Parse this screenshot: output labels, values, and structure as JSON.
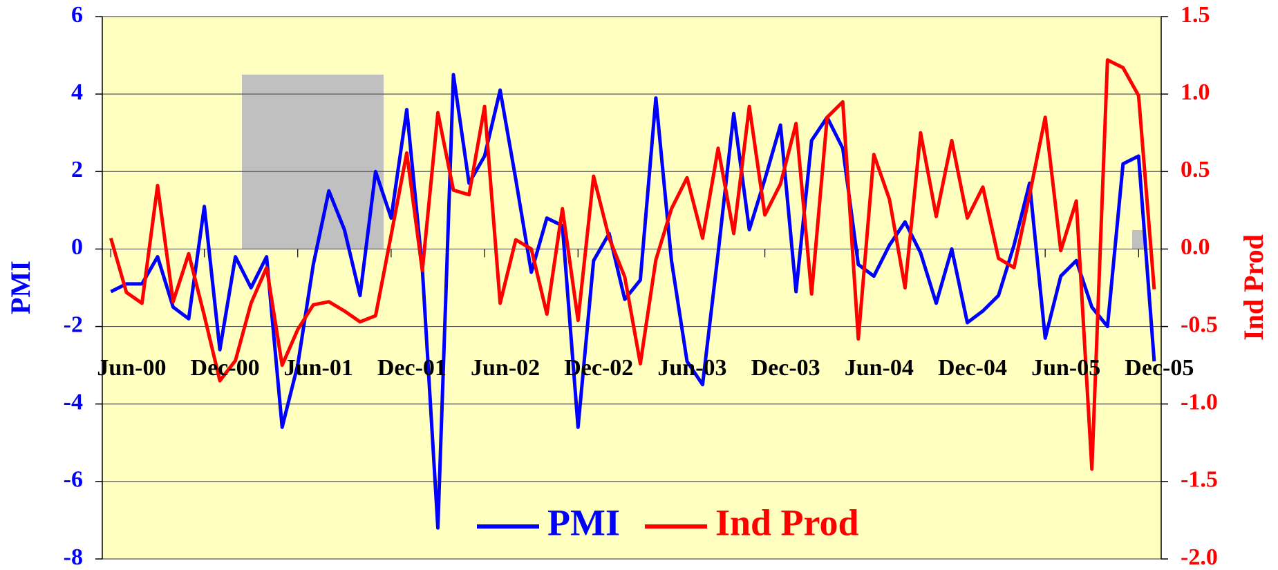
{
  "chart_data": {
    "type": "line",
    "categories": [
      "Jun-00",
      null,
      null,
      null,
      null,
      null,
      "Dec-00",
      null,
      null,
      null,
      null,
      null,
      "Jun-01",
      null,
      null,
      null,
      null,
      null,
      "Dec-01",
      null,
      null,
      null,
      null,
      null,
      "Jun-02",
      null,
      null,
      null,
      null,
      null,
      "Dec-02",
      null,
      null,
      null,
      null,
      null,
      "Jun-03",
      null,
      null,
      null,
      null,
      null,
      "Dec-03",
      null,
      null,
      null,
      null,
      null,
      "Jun-04",
      null,
      null,
      null,
      null,
      null,
      "Dec-04",
      null,
      null,
      null,
      null,
      null,
      "Jun-05",
      null,
      null,
      null,
      null,
      null,
      "Dec-05",
      null
    ],
    "series": [
      {
        "name": "PMI",
        "color": "#0000ff",
        "axis": "y",
        "values": [
          -1.1,
          -0.9,
          -0.9,
          -0.2,
          -1.5,
          -1.8,
          1.1,
          -2.6,
          -0.2,
          -1.0,
          -0.2,
          -4.6,
          -3.0,
          -0.4,
          1.5,
          0.5,
          -1.2,
          2.0,
          0.8,
          3.6,
          -0.5,
          -7.2,
          4.5,
          1.7,
          2.4,
          4.1,
          1.8,
          -0.6,
          0.8,
          0.6,
          -4.6,
          -0.3,
          0.4,
          -1.3,
          -0.8,
          3.9,
          -0.3,
          -2.9,
          -3.5,
          -0.1,
          3.5,
          0.5,
          1.8,
          3.2,
          -1.1,
          2.8,
          3.4,
          2.6,
          -0.4,
          -0.7,
          0.1,
          0.7,
          -0.1,
          -1.4,
          0.0,
          -1.9,
          -1.6,
          -1.2,
          0.1,
          1.7,
          -2.3,
          -0.7,
          -0.3,
          -1.5,
          -2.0,
          2.2,
          2.4,
          -2.9
        ]
      },
      {
        "name": "Ind Prod",
        "color": "#ff0000",
        "axis": "y2",
        "values": [
          0.07,
          -0.28,
          -0.35,
          0.41,
          -0.34,
          -0.03,
          -0.43,
          -0.85,
          -0.72,
          -0.35,
          -0.12,
          -0.75,
          -0.52,
          -0.36,
          -0.34,
          -0.4,
          -0.47,
          -0.43,
          0.09,
          0.62,
          -0.14,
          0.88,
          0.38,
          0.35,
          0.92,
          -0.35,
          0.06,
          0.0,
          -0.42,
          0.26,
          -0.46,
          0.47,
          0.07,
          -0.18,
          -0.74,
          -0.07,
          0.26,
          0.46,
          0.07,
          0.65,
          0.1,
          0.92,
          0.22,
          0.42,
          0.81,
          -0.29,
          0.85,
          0.95,
          -0.58,
          0.61,
          0.32,
          -0.25,
          0.75,
          0.21,
          0.7,
          0.2,
          0.4,
          -0.06,
          -0.12,
          0.35,
          0.85,
          -0.01,
          0.31,
          -1.42,
          1.22,
          1.17,
          0.99,
          -0.26
        ]
      }
    ],
    "y_label": "PMI",
    "y2_label": "Ind Prod",
    "ylim": [
      -8,
      6
    ],
    "yticks": [
      -8,
      -6,
      -4,
      -2,
      0,
      2,
      4,
      6
    ],
    "y2lim": [
      -2,
      1.5
    ],
    "y2ticks": [
      {
        "value": -2,
        "label": "-2.0"
      },
      -1.5,
      {
        "value": -1,
        "label": "-1.0"
      },
      -0.5,
      {
        "value": 0,
        "label": "0.0"
      },
      0.5,
      {
        "value": 1,
        "label": "1.0"
      },
      1.5
    ],
    "grid": true,
    "legend": "bottom"
  }
}
